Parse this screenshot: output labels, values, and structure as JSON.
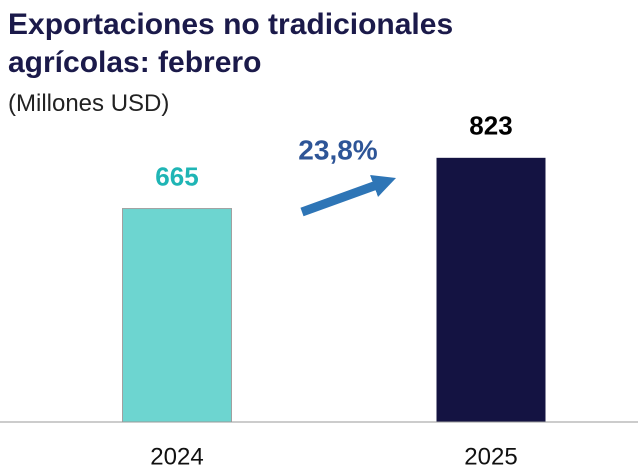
{
  "chart_data": {
    "type": "bar",
    "title": "Exportaciones no tradicionales agrícolas: febrero",
    "subtitle": "(Millones USD)",
    "categories": [
      "2024",
      "2025"
    ],
    "values": [
      665,
      823
    ],
    "colors": [
      "#6dd5d0",
      "#141342"
    ],
    "value_label_colors": [
      "#1fb5b5",
      "#000000"
    ],
    "ylim": [
      0,
      1000
    ],
    "annotation": {
      "text": "23,8%",
      "color": "#2e5597",
      "arrow_color": "#2e75b6"
    }
  }
}
